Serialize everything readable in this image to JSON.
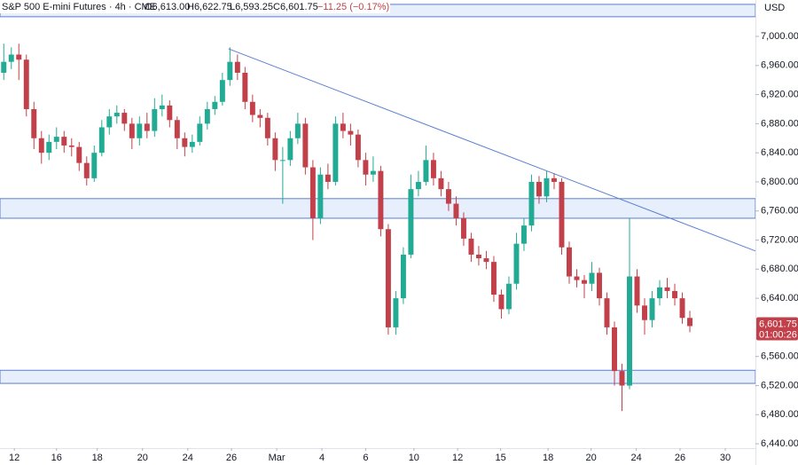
{
  "chart_data": {
    "type": "candlestick",
    "header": {
      "symbol": "S&P 500 E-mini Futures · 4h · CME",
      "open": "O6,613.00",
      "high": "H6,622.75",
      "low": "L6,593.25",
      "close": "C6,601.75",
      "change": "−11.25 (−0.17%)"
    },
    "currency": "USD",
    "up_color": "#22ab94",
    "down_color": "#c2404a",
    "last_price": {
      "value": 6601.75,
      "label": "6,601.75",
      "countdown": "01:00:26"
    },
    "xlim": [
      -0.5,
      99.7
    ],
    "ylim": [
      6434,
      7050
    ],
    "xticks": [
      {
        "value": 1.4,
        "label": "12"
      },
      {
        "value": 7.0,
        "label": "16"
      },
      {
        "value": 12.4,
        "label": "18"
      },
      {
        "value": 18.4,
        "label": "20"
      },
      {
        "value": 24.4,
        "label": "24"
      },
      {
        "value": 30.2,
        "label": "26"
      },
      {
        "value": 36.2,
        "label": "Mar"
      },
      {
        "value": 42.2,
        "label": "4"
      },
      {
        "value": 48.0,
        "label": "6"
      },
      {
        "value": 54.4,
        "label": "10"
      },
      {
        "value": 60.2,
        "label": "12"
      },
      {
        "value": 65.9,
        "label": "15"
      },
      {
        "value": 72.2,
        "label": "18"
      },
      {
        "value": 77.9,
        "label": "20"
      },
      {
        "value": 83.9,
        "label": "24"
      },
      {
        "value": 89.7,
        "label": "26"
      },
      {
        "value": 95.7,
        "label": "30"
      }
    ],
    "yticks": [
      {
        "value": 7000,
        "label": "7,000.00"
      },
      {
        "value": 6960,
        "label": "6,960.00"
      },
      {
        "value": 6920,
        "label": "6,920.00"
      },
      {
        "value": 6880,
        "label": "6,880.00"
      },
      {
        "value": 6840,
        "label": "6,840.00"
      },
      {
        "value": 6800,
        "label": "6,800.00"
      },
      {
        "value": 6760,
        "label": "6,760.00"
      },
      {
        "value": 6720,
        "label": "6,720.00"
      },
      {
        "value": 6680,
        "label": "6,680.00"
      },
      {
        "value": 6640,
        "label": "6,640.00"
      },
      {
        "value": 6560,
        "label": "6,560.00"
      },
      {
        "value": 6520,
        "label": "6,520.00"
      },
      {
        "value": 6480,
        "label": "6,480.00"
      },
      {
        "value": 6440,
        "label": "6,440.00"
      }
    ],
    "zones": [
      [
        7027,
        7044
      ],
      [
        6750,
        6777
      ],
      [
        6523,
        6541
      ]
    ],
    "trendline": {
      "x": [
        29.8,
        99.7
      ],
      "y": [
        6983,
        6705
      ]
    },
    "candles": [
      [
        6950,
        6990,
        6940,
        6965
      ],
      [
        6965,
        6985,
        6955,
        6975
      ],
      [
        6975,
        6990,
        6940,
        6968
      ],
      [
        6968,
        6975,
        6890,
        6900
      ],
      [
        6900,
        6910,
        6845,
        6860
      ],
      [
        6860,
        6870,
        6825,
        6840
      ],
      [
        6840,
        6865,
        6830,
        6855
      ],
      [
        6855,
        6875,
        6845,
        6862
      ],
      [
        6862,
        6870,
        6840,
        6850
      ],
      [
        6850,
        6860,
        6835,
        6848
      ],
      [
        6848,
        6855,
        6815,
        6826
      ],
      [
        6826,
        6835,
        6795,
        6805
      ],
      [
        6805,
        6850,
        6800,
        6840
      ],
      [
        6840,
        6885,
        6835,
        6875
      ],
      [
        6875,
        6900,
        6865,
        6890
      ],
      [
        6890,
        6905,
        6880,
        6895
      ],
      [
        6895,
        6900,
        6870,
        6880
      ],
      [
        6880,
        6888,
        6845,
        6860
      ],
      [
        6860,
        6890,
        6850,
        6880
      ],
      [
        6880,
        6895,
        6860,
        6870
      ],
      [
        6870,
        6915,
        6862,
        6900
      ],
      [
        6900,
        6920,
        6890,
        6905
      ],
      [
        6905,
        6912,
        6875,
        6885
      ],
      [
        6885,
        6890,
        6845,
        6860
      ],
      [
        6860,
        6868,
        6835,
        6848
      ],
      [
        6848,
        6865,
        6840,
        6855
      ],
      [
        6855,
        6890,
        6850,
        6880
      ],
      [
        6880,
        6910,
        6872,
        6900
      ],
      [
        6900,
        6918,
        6892,
        6910
      ],
      [
        6910,
        6950,
        6905,
        6940
      ],
      [
        6940,
        6985,
        6932,
        6965
      ],
      [
        6965,
        6975,
        6940,
        6950
      ],
      [
        6950,
        6958,
        6900,
        6910
      ],
      [
        6910,
        6920,
        6882,
        6892
      ],
      [
        6892,
        6900,
        6875,
        6888
      ],
      [
        6888,
        6895,
        6850,
        6860
      ],
      [
        6860,
        6868,
        6815,
        6830
      ],
      [
        6830,
        6848,
        6770,
        6830
      ],
      [
        6830,
        6870,
        6822,
        6860
      ],
      [
        6860,
        6895,
        6852,
        6880
      ],
      [
        6880,
        6888,
        6810,
        6820
      ],
      [
        6820,
        6830,
        6720,
        6750
      ],
      [
        6750,
        6820,
        6742,
        6810
      ],
      [
        6810,
        6825,
        6790,
        6800
      ],
      [
        6800,
        6890,
        6795,
        6880
      ],
      [
        6880,
        6895,
        6860,
        6870
      ],
      [
        6870,
        6880,
        6850,
        6865
      ],
      [
        6865,
        6872,
        6820,
        6830
      ],
      [
        6830,
        6840,
        6795,
        6810
      ],
      [
        6810,
        6835,
        6800,
        6815
      ],
      [
        6815,
        6822,
        6725,
        6735
      ],
      [
        6735,
        6742,
        6590,
        6600
      ],
      [
        6600,
        6650,
        6590,
        6640
      ],
      [
        6640,
        6710,
        6632,
        6700
      ],
      [
        6700,
        6810,
        6695,
        6790
      ],
      [
        6790,
        6815,
        6780,
        6800
      ],
      [
        6800,
        6850,
        6795,
        6830
      ],
      [
        6830,
        6840,
        6795,
        6805
      ],
      [
        6805,
        6815,
        6780,
        6790
      ],
      [
        6790,
        6800,
        6760,
        6770
      ],
      [
        6770,
        6780,
        6740,
        6750
      ],
      [
        6750,
        6758,
        6712,
        6722
      ],
      [
        6722,
        6730,
        6690,
        6700
      ],
      [
        6700,
        6712,
        6685,
        6695
      ],
      [
        6695,
        6705,
        6680,
        6690
      ],
      [
        6690,
        6698,
        6635,
        6645
      ],
      [
        6645,
        6652,
        6612,
        6625
      ],
      [
        6625,
        6670,
        6618,
        6660
      ],
      [
        6660,
        6730,
        6652,
        6715
      ],
      [
        6715,
        6750,
        6705,
        6740
      ],
      [
        6740,
        6810,
        6732,
        6800
      ],
      [
        6800,
        6808,
        6770,
        6780
      ],
      [
        6780,
        6815,
        6772,
        6805
      ],
      [
        6805,
        6812,
        6790,
        6800
      ],
      [
        6800,
        6805,
        6700,
        6710
      ],
      [
        6710,
        6718,
        6660,
        6670
      ],
      [
        6670,
        6680,
        6655,
        6665
      ],
      [
        6665,
        6672,
        6640,
        6660
      ],
      [
        6660,
        6690,
        6650,
        6675
      ],
      [
        6675,
        6682,
        6630,
        6640
      ],
      [
        6640,
        6648,
        6590,
        6600
      ],
      [
        6600,
        6608,
        6520,
        6540
      ],
      [
        6540,
        6550,
        6485,
        6520
      ],
      [
        6520,
        6750,
        6515,
        6670
      ],
      [
        6670,
        6680,
        6620,
        6630
      ],
      [
        6630,
        6640,
        6590,
        6610
      ],
      [
        6610,
        6650,
        6600,
        6640
      ],
      [
        6640,
        6665,
        6630,
        6655
      ],
      [
        6655,
        6668,
        6640,
        6650
      ],
      [
        6650,
        6660,
        6630,
        6640
      ],
      [
        6640,
        6648,
        6605,
        6613
      ],
      [
        6613,
        6622.75,
        6593.25,
        6601.75
      ]
    ]
  }
}
